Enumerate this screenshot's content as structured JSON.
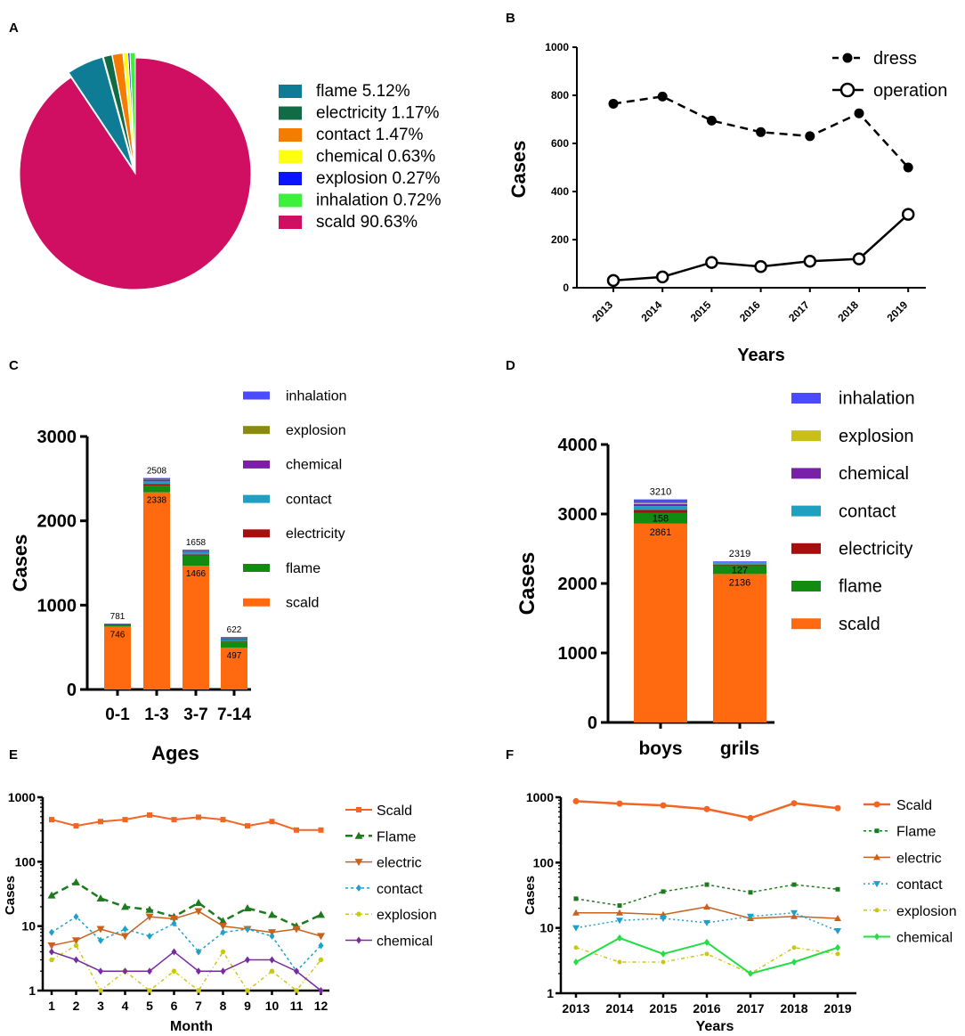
{
  "colors": {
    "flame": "#0f7c96",
    "electricity": "#106b46",
    "contact": "#f57c00",
    "chemical": "#ffff10",
    "explosion": "#0a14ff",
    "inhalation": "#3cf03c",
    "scald": "#d00f63",
    "bar_inhalation": "#4a4aff",
    "bar_explosion": "#8b8b12",
    "bar_chemical": "#7a20a8",
    "bar_contact": "#1ea0c0",
    "bar_electricity": "#a80e0e",
    "bar_flame": "#118c11",
    "bar_scald": "#ff6a10",
    "d_explosion": "#c8c014",
    "e_scald": "#f26522",
    "e_flame": "#1e7a1e",
    "e_electric": "#c8621e",
    "e_contact": "#1ea0c8",
    "e_explosion": "#c8c814",
    "e_chemical": "#7a2aa0",
    "f_chemical": "#22dd44"
  },
  "chart_data": [
    {
      "panel": "A",
      "type": "pie",
      "legend": [
        "flame 5.12%",
        "electricity 1.17%",
        "contact 1.47%",
        "chemical 0.63%",
        "explosion 0.27%",
        "inhalation 0.72%",
        "scald 90.63%"
      ],
      "slices": [
        {
          "name": "flame",
          "value": 5.12
        },
        {
          "name": "electricity",
          "value": 1.17
        },
        {
          "name": "contact",
          "value": 1.47
        },
        {
          "name": "chemical",
          "value": 0.63
        },
        {
          "name": "explosion",
          "value": 0.27
        },
        {
          "name": "inhalation",
          "value": 0.72
        },
        {
          "name": "scald",
          "value": 90.63
        }
      ]
    },
    {
      "panel": "B",
      "type": "line",
      "categories": [
        "2013",
        "2014",
        "2015",
        "2016",
        "2017",
        "2018",
        "2019"
      ],
      "series": [
        {
          "name": "dress",
          "values": [
            765,
            795,
            695,
            647,
            630,
            725,
            500
          ]
        },
        {
          "name": "operation",
          "values": [
            30,
            45,
            105,
            88,
            110,
            120,
            305
          ]
        }
      ],
      "ylim": [
        0,
        1000
      ],
      "yticks": [
        "0",
        "200",
        "400",
        "600",
        "800",
        "1000"
      ],
      "xlabel": "Years",
      "ylabel": "Cases"
    },
    {
      "panel": "C",
      "type": "bar",
      "categories": [
        "0-1",
        "1-3",
        "3-7",
        "7-14"
      ],
      "totals": [
        781,
        2508,
        1658,
        622
      ],
      "total_labels": [
        "781",
        "2508",
        "1658",
        "622"
      ],
      "scald_labels": [
        "746",
        "2338",
        "1466",
        "497"
      ],
      "series": [
        {
          "name": "scald",
          "values": [
            746,
            2338,
            1466,
            497
          ]
        },
        {
          "name": "flame",
          "values": [
            22,
            80,
            120,
            70
          ]
        },
        {
          "name": "electricity",
          "values": [
            3,
            20,
            15,
            10
          ]
        },
        {
          "name": "contact",
          "values": [
            4,
            30,
            25,
            15
          ]
        },
        {
          "name": "chemical",
          "values": [
            2,
            15,
            10,
            10
          ]
        },
        {
          "name": "explosion",
          "values": [
            1,
            5,
            5,
            5
          ]
        },
        {
          "name": "inhalation",
          "values": [
            3,
            20,
            17,
            15
          ]
        }
      ],
      "legend": [
        "inhalation",
        "explosion",
        "chemical",
        "contact",
        "electricity",
        "flame",
        "scald"
      ],
      "ylim": [
        0,
        3000
      ],
      "yticks": [
        "0",
        "1000",
        "2000",
        "3000"
      ],
      "xlabel": "Ages",
      "ylabel": "Cases"
    },
    {
      "panel": "D",
      "type": "bar",
      "categories": [
        "boys",
        "grils"
      ],
      "totals": [
        3210,
        2319
      ],
      "total_labels": [
        "3210",
        "2319"
      ],
      "flame_labels": [
        "158",
        "127"
      ],
      "scald_labels": [
        "2861",
        "2136"
      ],
      "series": [
        {
          "name": "scald",
          "values": [
            2861,
            2136
          ]
        },
        {
          "name": "flame",
          "values": [
            158,
            127
          ]
        },
        {
          "name": "electricity",
          "values": [
            40,
            10
          ]
        },
        {
          "name": "contact",
          "values": [
            55,
            20
          ]
        },
        {
          "name": "chemical",
          "values": [
            30,
            10
          ]
        },
        {
          "name": "explosion",
          "values": [
            16,
            6
          ]
        },
        {
          "name": "inhalation",
          "values": [
            50,
            10
          ]
        }
      ],
      "legend": [
        "inhalation",
        "explosion",
        "chemical",
        "contact",
        "electricity",
        "flame",
        "scald"
      ],
      "ylim": [
        0,
        4000
      ],
      "yticks": [
        "0",
        "1000",
        "2000",
        "3000",
        "4000"
      ],
      "xlabel": "",
      "ylabel": "Cases"
    },
    {
      "panel": "E",
      "type": "line",
      "yscale": "log",
      "categories": [
        "1",
        "2",
        "3",
        "4",
        "5",
        "6",
        "7",
        "8",
        "9",
        "10",
        "11",
        "12"
      ],
      "series": [
        {
          "name": "Scald",
          "values": [
            450,
            360,
            420,
            450,
            530,
            450,
            490,
            450,
            360,
            420,
            310,
            310
          ]
        },
        {
          "name": "Flame",
          "values": [
            30,
            48,
            27,
            20,
            18,
            14,
            23,
            12,
            19,
            15,
            10,
            15
          ]
        },
        {
          "name": "electric",
          "values": [
            5,
            6,
            9,
            7,
            14,
            13,
            17,
            10,
            9,
            8,
            9,
            7
          ]
        },
        {
          "name": "contact",
          "values": [
            8,
            14,
            6,
            9,
            7,
            11,
            4,
            8,
            9,
            7,
            2,
            5
          ]
        },
        {
          "name": "explosion",
          "values": [
            3,
            5,
            1,
            2,
            1,
            2,
            1,
            4,
            1,
            2,
            1,
            3
          ]
        },
        {
          "name": "chemical",
          "values": [
            4,
            3,
            2,
            2,
            2,
            4,
            2,
            2,
            3,
            3,
            2,
            1
          ]
        }
      ],
      "ylim": [
        1,
        1000
      ],
      "yticks": [
        "1",
        "10",
        "100",
        "1000"
      ],
      "xlabel": "Month",
      "ylabel": "Cases"
    },
    {
      "panel": "F",
      "type": "line",
      "yscale": "log",
      "categories": [
        "2013",
        "2014",
        "2015",
        "2016",
        "2017",
        "2018",
        "2019"
      ],
      "series": [
        {
          "name": "Scald",
          "values": [
            870,
            800,
            750,
            660,
            480,
            810,
            680
          ]
        },
        {
          "name": "Flame",
          "values": [
            28,
            22,
            36,
            46,
            35,
            46,
            39
          ]
        },
        {
          "name": "electric",
          "values": [
            17,
            17,
            16,
            21,
            14,
            15,
            14
          ]
        },
        {
          "name": "contact",
          "values": [
            10,
            13,
            14,
            12,
            15,
            17,
            9
          ]
        },
        {
          "name": "explosion",
          "values": [
            5,
            3,
            3,
            4,
            2,
            5,
            4
          ]
        },
        {
          "name": "chemical",
          "values": [
            3,
            7,
            4,
            6,
            2,
            3,
            5
          ]
        }
      ],
      "ylim": [
        1,
        1000
      ],
      "yticks": [
        "1",
        "10",
        "100",
        "1000"
      ],
      "xlabel": "Years",
      "ylabel": "Cases"
    }
  ]
}
